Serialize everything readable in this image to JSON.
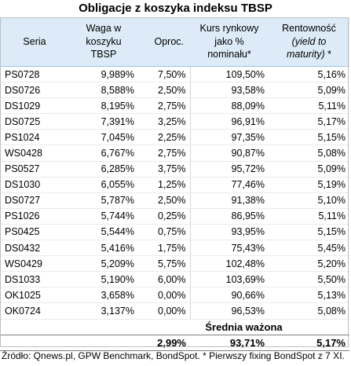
{
  "title": "Obligacje z koszyka indeksu TBSP",
  "headers": {
    "seria": "Seria",
    "waga_1": "Waga w",
    "waga_2": "koszyku",
    "waga_3": "TBSP",
    "oproc": "Oproc.",
    "kurs_1": "Kurs rynkowy",
    "kurs_2": "jako %",
    "kurs_3": "nominału*",
    "rent_1": "Rentowność",
    "rent_2": "(yield to",
    "rent_3": "maturity)",
    "rent_3_suffix": " *"
  },
  "rows": [
    {
      "seria": "PS0728",
      "waga": "9,989%",
      "oproc": "7,50%",
      "kurs": "109,50%",
      "rent": "5,16%"
    },
    {
      "seria": "DS0726",
      "waga": "8,588%",
      "oproc": "2,50%",
      "kurs": "93,58%",
      "rent": "5,09%"
    },
    {
      "seria": "DS1029",
      "waga": "8,195%",
      "oproc": "2,75%",
      "kurs": "88,09%",
      "rent": "5,11%"
    },
    {
      "seria": "DS0725",
      "waga": "7,391%",
      "oproc": "3,25%",
      "kurs": "96,91%",
      "rent": "5,17%"
    },
    {
      "seria": "PS1024",
      "waga": "7,045%",
      "oproc": "2,25%",
      "kurs": "97,35%",
      "rent": "5,15%"
    },
    {
      "seria": "WS0428",
      "waga": "6,767%",
      "oproc": "2,75%",
      "kurs": "90,87%",
      "rent": "5,08%"
    },
    {
      "seria": "PS0527",
      "waga": "6,285%",
      "oproc": "3,75%",
      "kurs": "95,72%",
      "rent": "5,09%"
    },
    {
      "seria": "DS1030",
      "waga": "6,055%",
      "oproc": "1,25%",
      "kurs": "77,46%",
      "rent": "5,19%"
    },
    {
      "seria": "DS0727",
      "waga": "5,787%",
      "oproc": "2,50%",
      "kurs": "91,38%",
      "rent": "5,10%"
    },
    {
      "seria": "PS1026",
      "waga": "5,744%",
      "oproc": "0,25%",
      "kurs": "86,95%",
      "rent": "5,11%"
    },
    {
      "seria": "PS0425",
      "waga": "5,544%",
      "oproc": "0,75%",
      "kurs": "93,95%",
      "rent": "5,15%"
    },
    {
      "seria": "DS0432",
      "waga": "5,416%",
      "oproc": "1,75%",
      "kurs": "75,43%",
      "rent": "5,45%"
    },
    {
      "seria": "WS0429",
      "waga": "5,209%",
      "oproc": "5,75%",
      "kurs": "102,48%",
      "rent": "5,20%"
    },
    {
      "seria": "DS1033",
      "waga": "5,190%",
      "oproc": "6,00%",
      "kurs": "103,69%",
      "rent": "5,50%"
    },
    {
      "seria": "OK1025",
      "waga": "3,658%",
      "oproc": "0,00%",
      "kurs": "90,66%",
      "rent": "5,13%"
    },
    {
      "seria": "OK0724",
      "waga": "3,137%",
      "oproc": "0,00%",
      "kurs": "96,53%",
      "rent": "5,08%"
    }
  ],
  "average": {
    "label": "Średnia ważona",
    "oproc": "2,99%",
    "kurs": "93,71%",
    "rent": "5,17%"
  },
  "source": "Źródło: Qnews.pl, GPW Benchmark, BondSpot. * Pierwszy fixing BondSpot z 7 XI."
}
